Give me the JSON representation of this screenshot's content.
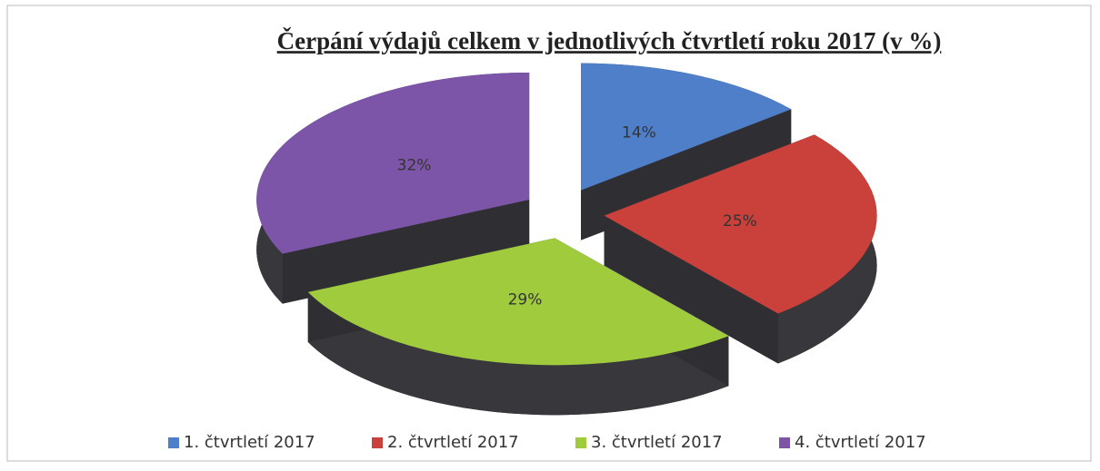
{
  "chart_data": {
    "type": "pie",
    "title": "Čerpání výdajů celkem v jednotlivých čtvrtletí roku 2017 (v %)",
    "categories": [
      "1. čtvrtletí 2017",
      "2. čtvrtletí 2017",
      "3. čtvrtletí 2017",
      "4. čtvrtletí 2017"
    ],
    "values": [
      14,
      25,
      29,
      32
    ],
    "value_labels": [
      "14%",
      "25%",
      "29%",
      "32%"
    ],
    "colors": [
      "#4f7fc9",
      "#c9413a",
      "#9fcb3d",
      "#7c55a8"
    ],
    "legend": "bottom"
  }
}
